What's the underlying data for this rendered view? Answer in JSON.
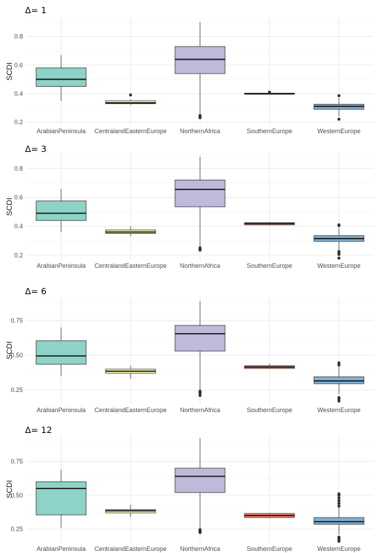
{
  "chart_data": [
    {
      "type": "box",
      "title": "Δ= 1",
      "ylabel": "SCDI",
      "ylim": [
        0.18,
        0.93
      ],
      "yticks": [
        "0.2",
        "0.4",
        "0.6",
        "0.8"
      ],
      "categories": [
        "ArabianPeninsula",
        "CentralandEasternEurope",
        "NorthernAfrica",
        "SouthernEurope",
        "WesternEurope"
      ],
      "boxes": [
        {
          "min": 0.35,
          "q1": 0.45,
          "median": 0.5,
          "q3": 0.58,
          "max": 0.67,
          "outliers": []
        },
        {
          "min": 0.32,
          "q1": 0.328,
          "median": 0.335,
          "q3": 0.35,
          "max": 0.36,
          "outliers": [
            0.39
          ]
        },
        {
          "min": 0.25,
          "q1": 0.54,
          "median": 0.64,
          "q3": 0.73,
          "max": 0.9,
          "outliers": [
            0.23,
            0.235,
            0.24,
            0.245
          ]
        },
        {
          "min": 0.395,
          "q1": 0.398,
          "median": 0.4,
          "q3": 0.402,
          "max": 0.405,
          "outliers": [
            0.41
          ]
        },
        {
          "min": 0.24,
          "q1": 0.29,
          "median": 0.31,
          "q3": 0.325,
          "max": 0.37,
          "outliers": [
            0.22,
            0.385
          ]
        }
      ],
      "colors": [
        "#8dd3c7",
        "#ffffb3",
        "#bebada",
        "#fb8072",
        "#80b1d3"
      ]
    },
    {
      "type": "box",
      "title": "Δ= 3",
      "ylabel": "SCDI",
      "ylim": [
        0.17,
        0.9
      ],
      "yticks": [
        "0.2",
        "0.4",
        "0.6",
        "0.8"
      ],
      "categories": [
        "ArabianPeninsula",
        "CentralandEasternEurope",
        "NorthernAfrica",
        "SouthernEurope",
        "WesternEurope"
      ],
      "boxes": [
        {
          "min": 0.36,
          "q1": 0.44,
          "median": 0.49,
          "q3": 0.575,
          "max": 0.66,
          "outliers": []
        },
        {
          "min": 0.33,
          "q1": 0.35,
          "median": 0.36,
          "q3": 0.375,
          "max": 0.4,
          "outliers": []
        },
        {
          "min": 0.25,
          "q1": 0.535,
          "median": 0.655,
          "q3": 0.72,
          "max": 0.88,
          "outliers": [
            0.235,
            0.24,
            0.245,
            0.25
          ]
        },
        {
          "min": 0.405,
          "q1": 0.41,
          "median": 0.418,
          "q3": 0.425,
          "max": 0.43,
          "outliers": []
        },
        {
          "min": 0.23,
          "q1": 0.295,
          "median": 0.315,
          "q3": 0.335,
          "max": 0.39,
          "outliers": [
            0.18,
            0.205,
            0.215,
            0.225,
            0.405,
            0.41
          ]
        }
      ],
      "colors": [
        "#8dd3c7",
        "#ffffb3",
        "#bebada",
        "#fb8072",
        "#80b1d3"
      ]
    },
    {
      "type": "box",
      "title": "Δ= 6",
      "ylabel": "SCDI",
      "ylim": [
        0.15,
        0.92
      ],
      "yticks": [
        "0.25",
        "0.50",
        "0.75"
      ],
      "categories": [
        "ArabianPeninsula",
        "CentralandEasternEurope",
        "NorthernAfrica",
        "SouthernEurope",
        "WesternEurope"
      ],
      "boxes": [
        {
          "min": 0.35,
          "q1": 0.435,
          "median": 0.495,
          "q3": 0.605,
          "max": 0.7,
          "outliers": []
        },
        {
          "min": 0.33,
          "q1": 0.37,
          "median": 0.385,
          "q3": 0.4,
          "max": 0.425,
          "outliers": []
        },
        {
          "min": 0.25,
          "q1": 0.53,
          "median": 0.655,
          "q3": 0.715,
          "max": 0.89,
          "outliers": [
            0.21,
            0.225,
            0.235,
            0.24
          ]
        },
        {
          "min": 0.4,
          "q1": 0.405,
          "median": 0.415,
          "q3": 0.425,
          "max": 0.44,
          "outliers": []
        },
        {
          "min": 0.22,
          "q1": 0.295,
          "median": 0.315,
          "q3": 0.345,
          "max": 0.42,
          "outliers": [
            0.17,
            0.185,
            0.195,
            0.43,
            0.445
          ]
        }
      ],
      "colors": [
        "#8dd3c7",
        "#ffffb3",
        "#bebada",
        "#fb8072",
        "#80b1d3"
      ]
    },
    {
      "type": "box",
      "title": "Δ= 12",
      "ylabel": "SCDI",
      "ylim": [
        0.15,
        0.94
      ],
      "yticks": [
        "0.25",
        "0.50",
        "0.75"
      ],
      "categories": [
        "ArabianPeninsula",
        "CentralandEasternEurope",
        "NorthernAfrica",
        "SouthernEurope",
        "WesternEurope"
      ],
      "boxes": [
        {
          "min": 0.26,
          "q1": 0.355,
          "median": 0.55,
          "q3": 0.6,
          "max": 0.69,
          "outliers": []
        },
        {
          "min": 0.34,
          "q1": 0.37,
          "median": 0.385,
          "q3": 0.395,
          "max": 0.43,
          "outliers": []
        },
        {
          "min": 0.25,
          "q1": 0.52,
          "median": 0.64,
          "q3": 0.7,
          "max": 0.92,
          "outliers": [
            0.225,
            0.23,
            0.235,
            0.24,
            0.245
          ]
        },
        {
          "min": 0.33,
          "q1": 0.335,
          "median": 0.35,
          "q3": 0.365,
          "max": 0.37,
          "outliers": []
        },
        {
          "min": 0.21,
          "q1": 0.285,
          "median": 0.305,
          "q3": 0.335,
          "max": 0.41,
          "outliers": [
            0.16,
            0.17,
            0.18,
            0.19,
            0.42,
            0.44,
            0.46,
            0.48,
            0.5,
            0.51
          ]
        }
      ],
      "colors": [
        "#8dd3c7",
        "#ffffb3",
        "#bebada",
        "#fb8072",
        "#80b1d3"
      ]
    }
  ]
}
